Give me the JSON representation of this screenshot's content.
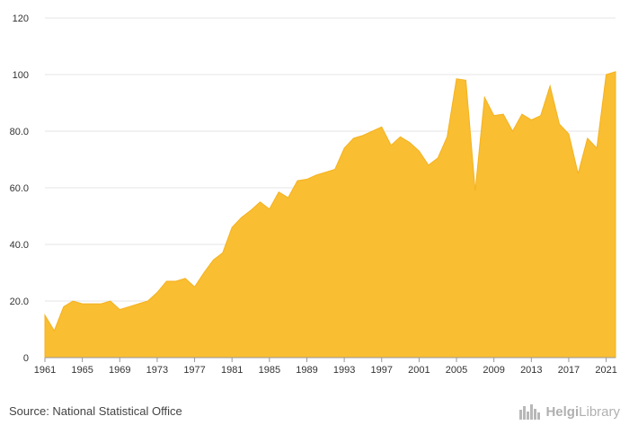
{
  "chart_data": {
    "type": "area",
    "title": "",
    "xlabel": "",
    "ylabel": "",
    "ylim": [
      0,
      120
    ],
    "xlim": [
      1961,
      2022
    ],
    "grid": true,
    "legend": "none",
    "yticks": [
      0,
      20,
      40,
      60,
      80,
      100,
      120
    ],
    "ytick_labels": [
      "0",
      "20.0",
      "40.0",
      "60.0",
      "80.0",
      "100",
      "120"
    ],
    "xticks": [
      1961,
      1965,
      1969,
      1973,
      1977,
      1981,
      1985,
      1989,
      1993,
      1997,
      2001,
      2005,
      2009,
      2013,
      2017,
      2021
    ],
    "xtick_labels": [
      "1961",
      "1965",
      "1969",
      "1973",
      "1977",
      "1981",
      "1985",
      "1989",
      "1993",
      "1997",
      "2001",
      "2005",
      "2009",
      "2013",
      "2017",
      "2021"
    ],
    "color": "#f9be31",
    "x": [
      1961,
      1962,
      1963,
      1964,
      1965,
      1966,
      1967,
      1968,
      1969,
      1970,
      1971,
      1972,
      1973,
      1974,
      1975,
      1976,
      1977,
      1978,
      1979,
      1980,
      1981,
      1982,
      1983,
      1984,
      1985,
      1986,
      1987,
      1988,
      1989,
      1990,
      1991,
      1992,
      1993,
      1994,
      1995,
      1996,
      1997,
      1998,
      1999,
      2000,
      2001,
      2002,
      2003,
      2004,
      2005,
      2006,
      2007,
      2008,
      2009,
      2010,
      2011,
      2012,
      2013,
      2014,
      2015,
      2016,
      2017,
      2018,
      2019,
      2020,
      2021,
      2022
    ],
    "values": [
      15,
      9.5,
      18,
      20,
      19,
      19,
      19,
      20,
      17,
      18,
      19,
      20,
      23,
      27,
      27,
      28,
      25,
      30,
      34.5,
      37,
      46,
      49.5,
      52,
      55,
      52.5,
      58.5,
      56.5,
      62.5,
      63,
      64.5,
      65.5,
      66.5,
      74,
      77.5,
      78.5,
      80,
      81.5,
      75,
      78,
      76,
      73,
      68,
      70.5,
      78,
      98.5,
      98,
      59,
      92,
      85.5,
      86,
      80,
      86,
      84,
      85.5,
      96,
      82.5,
      79,
      65,
      77.5,
      74,
      100,
      101
    ]
  },
  "footer": {
    "source": "Source: National Statistical Office",
    "brand_bold": "Helgi",
    "brand_regular": "Library",
    "brand_icon": "helgi-library-logo-icon"
  }
}
